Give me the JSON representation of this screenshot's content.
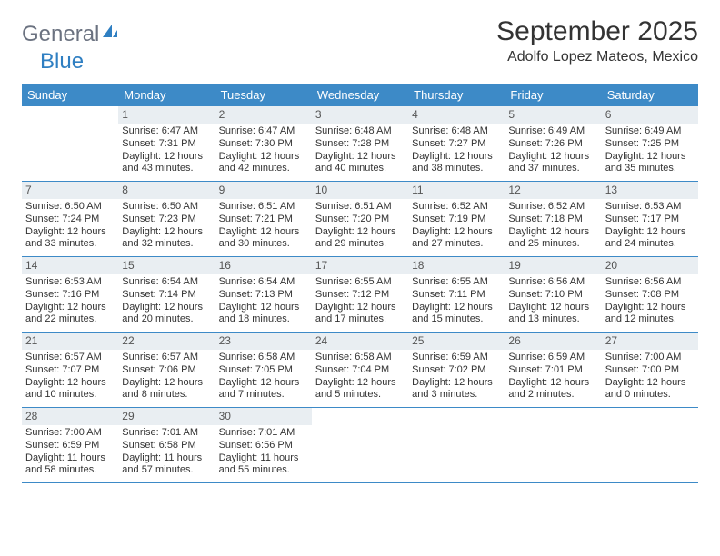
{
  "logo": {
    "part1": "General",
    "part2": "Blue"
  },
  "title": "September 2025",
  "location": "Adolfo Lopez Mateos, Mexico",
  "colors": {
    "header_bg": "#3d8ac7",
    "daynum_bg": "#e9eef2",
    "text": "#333333",
    "logo_gray": "#6b7280",
    "logo_blue": "#2f7fc2"
  },
  "days_of_week": [
    "Sunday",
    "Monday",
    "Tuesday",
    "Wednesday",
    "Thursday",
    "Friday",
    "Saturday"
  ],
  "weeks": [
    [
      null,
      {
        "n": "1",
        "r": "6:47 AM",
        "s": "7:31 PM",
        "h": "12",
        "m": "43"
      },
      {
        "n": "2",
        "r": "6:47 AM",
        "s": "7:30 PM",
        "h": "12",
        "m": "42"
      },
      {
        "n": "3",
        "r": "6:48 AM",
        "s": "7:28 PM",
        "h": "12",
        "m": "40"
      },
      {
        "n": "4",
        "r": "6:48 AM",
        "s": "7:27 PM",
        "h": "12",
        "m": "38"
      },
      {
        "n": "5",
        "r": "6:49 AM",
        "s": "7:26 PM",
        "h": "12",
        "m": "37"
      },
      {
        "n": "6",
        "r": "6:49 AM",
        "s": "7:25 PM",
        "h": "12",
        "m": "35"
      }
    ],
    [
      {
        "n": "7",
        "r": "6:50 AM",
        "s": "7:24 PM",
        "h": "12",
        "m": "33"
      },
      {
        "n": "8",
        "r": "6:50 AM",
        "s": "7:23 PM",
        "h": "12",
        "m": "32"
      },
      {
        "n": "9",
        "r": "6:51 AM",
        "s": "7:21 PM",
        "h": "12",
        "m": "30"
      },
      {
        "n": "10",
        "r": "6:51 AM",
        "s": "7:20 PM",
        "h": "12",
        "m": "29"
      },
      {
        "n": "11",
        "r": "6:52 AM",
        "s": "7:19 PM",
        "h": "12",
        "m": "27"
      },
      {
        "n": "12",
        "r": "6:52 AM",
        "s": "7:18 PM",
        "h": "12",
        "m": "25"
      },
      {
        "n": "13",
        "r": "6:53 AM",
        "s": "7:17 PM",
        "h": "12",
        "m": "24"
      }
    ],
    [
      {
        "n": "14",
        "r": "6:53 AM",
        "s": "7:16 PM",
        "h": "12",
        "m": "22"
      },
      {
        "n": "15",
        "r": "6:54 AM",
        "s": "7:14 PM",
        "h": "12",
        "m": "20"
      },
      {
        "n": "16",
        "r": "6:54 AM",
        "s": "7:13 PM",
        "h": "12",
        "m": "18"
      },
      {
        "n": "17",
        "r": "6:55 AM",
        "s": "7:12 PM",
        "h": "12",
        "m": "17"
      },
      {
        "n": "18",
        "r": "6:55 AM",
        "s": "7:11 PM",
        "h": "12",
        "m": "15"
      },
      {
        "n": "19",
        "r": "6:56 AM",
        "s": "7:10 PM",
        "h": "12",
        "m": "13"
      },
      {
        "n": "20",
        "r": "6:56 AM",
        "s": "7:08 PM",
        "h": "12",
        "m": "12"
      }
    ],
    [
      {
        "n": "21",
        "r": "6:57 AM",
        "s": "7:07 PM",
        "h": "12",
        "m": "10"
      },
      {
        "n": "22",
        "r": "6:57 AM",
        "s": "7:06 PM",
        "h": "12",
        "m": "8"
      },
      {
        "n": "23",
        "r": "6:58 AM",
        "s": "7:05 PM",
        "h": "12",
        "m": "7"
      },
      {
        "n": "24",
        "r": "6:58 AM",
        "s": "7:04 PM",
        "h": "12",
        "m": "5"
      },
      {
        "n": "25",
        "r": "6:59 AM",
        "s": "7:02 PM",
        "h": "12",
        "m": "3"
      },
      {
        "n": "26",
        "r": "6:59 AM",
        "s": "7:01 PM",
        "h": "12",
        "m": "2"
      },
      {
        "n": "27",
        "r": "7:00 AM",
        "s": "7:00 PM",
        "h": "12",
        "m": "0"
      }
    ],
    [
      {
        "n": "28",
        "r": "7:00 AM",
        "s": "6:59 PM",
        "h": "11",
        "m": "58"
      },
      {
        "n": "29",
        "r": "7:01 AM",
        "s": "6:58 PM",
        "h": "11",
        "m": "57"
      },
      {
        "n": "30",
        "r": "7:01 AM",
        "s": "6:56 PM",
        "h": "11",
        "m": "55"
      },
      null,
      null,
      null,
      null
    ]
  ],
  "labels": {
    "sunrise": "Sunrise:",
    "sunset": "Sunset:",
    "daylight": "Daylight:",
    "hours": "hours",
    "and": "and",
    "minutes": "minutes."
  }
}
